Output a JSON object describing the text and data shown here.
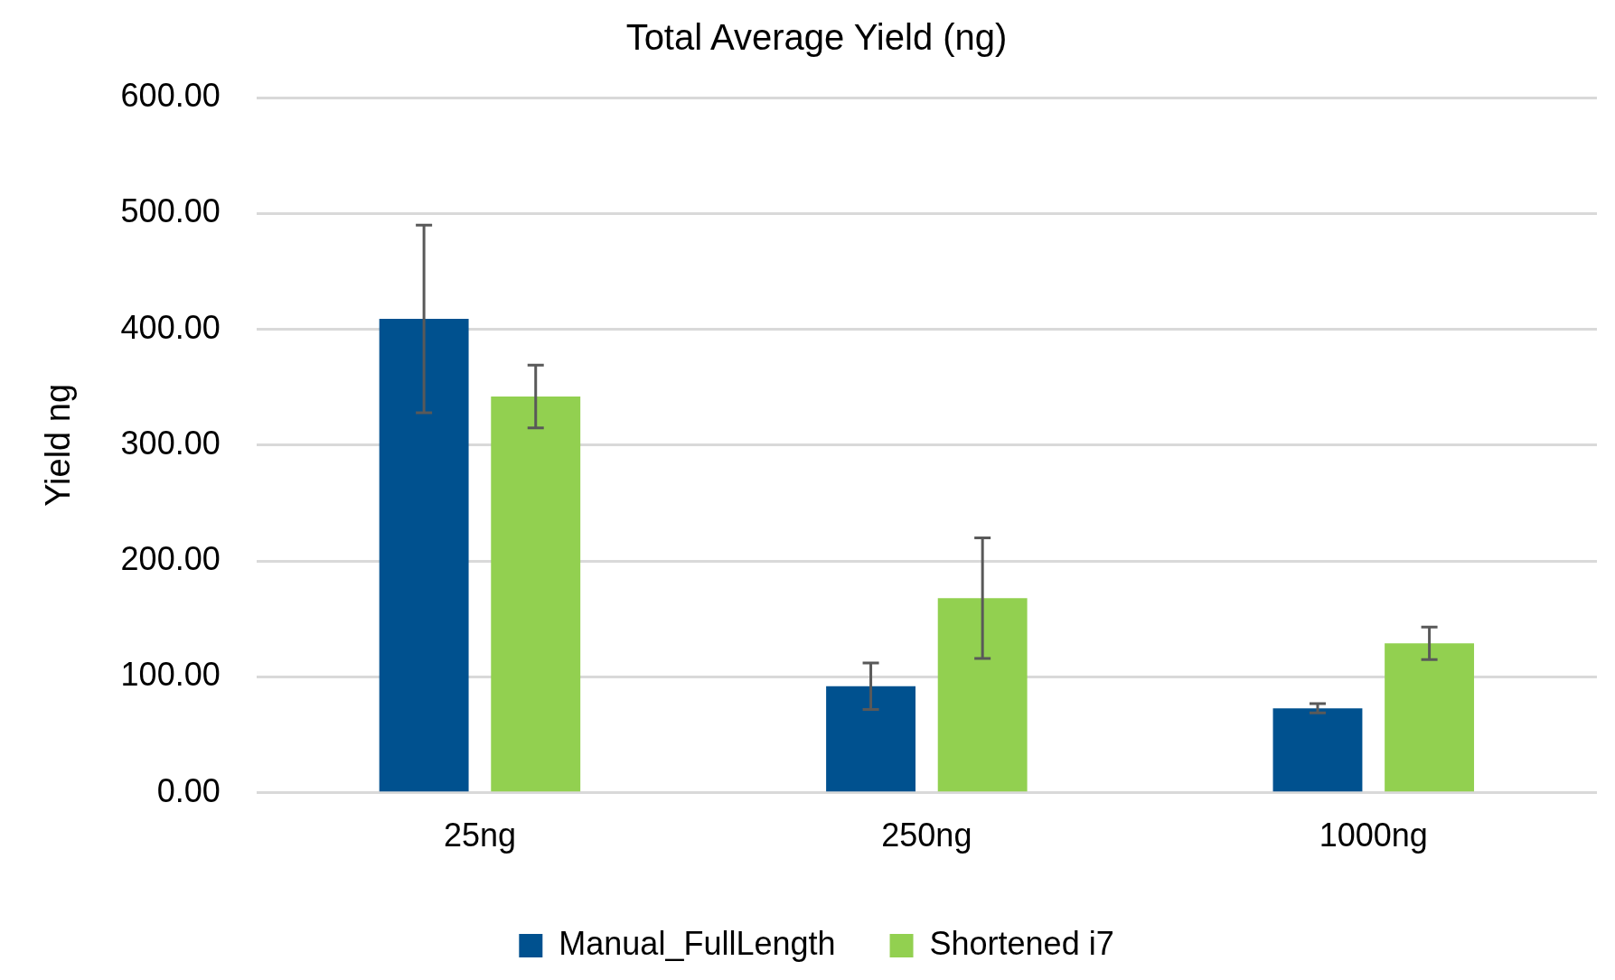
{
  "chart_data": {
    "type": "bar",
    "title": "Total Average Yield (ng)",
    "ylabel": "Yield ng",
    "categories": [
      "25ng",
      "250ng",
      "1000ng"
    ],
    "series": [
      {
        "name": "Manual_FullLength",
        "color": "#00518f",
        "values": [
          409,
          92,
          73
        ],
        "errors": [
          81,
          20,
          4
        ]
      },
      {
        "name": "Shortened i7",
        "color": "#92d050",
        "values": [
          342,
          168,
          129
        ],
        "errors": [
          27,
          52,
          14
        ]
      }
    ],
    "ylim": [
      0,
      600
    ],
    "yticks": [
      {
        "value": 0,
        "label": "0.00"
      },
      {
        "value": 100,
        "label": "100.00"
      },
      {
        "value": 200,
        "label": "200.00"
      },
      {
        "value": 300,
        "label": "300.00"
      },
      {
        "value": 400,
        "label": "400.00"
      },
      {
        "value": 500,
        "label": "500.00"
      },
      {
        "value": 600,
        "label": "600.00"
      }
    ],
    "grid": "y",
    "legend": "bottom"
  }
}
